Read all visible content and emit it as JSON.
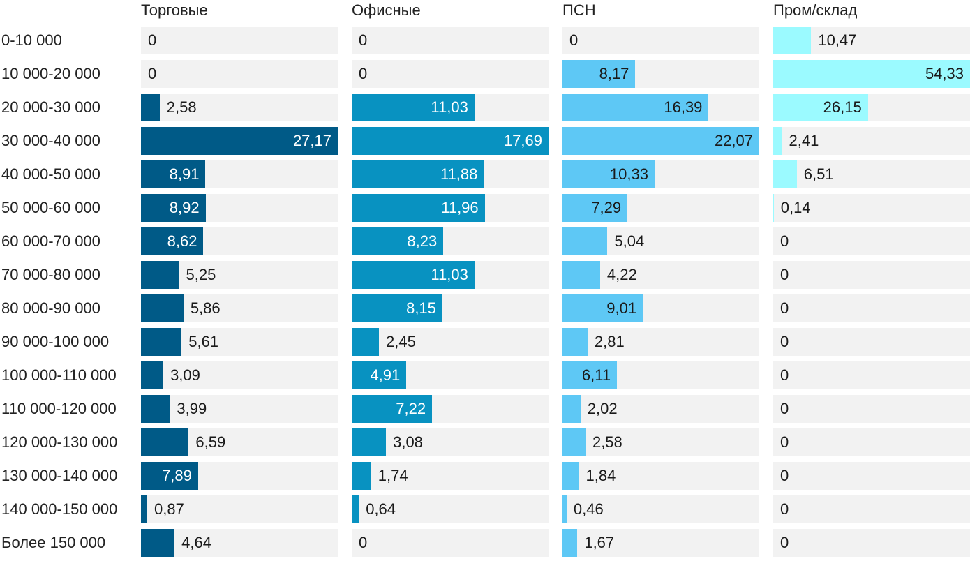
{
  "chart_data": {
    "type": "bar",
    "orientation": "horizontal",
    "layout": "small-multiples",
    "categories": [
      "0-10 000",
      "10 000-20 000",
      "20 000-30 000",
      "30 000-40 000",
      "40 000-50 000",
      "50 000-60 000",
      "60 000-70 000",
      "70 000-80 000",
      "80 000-90 000",
      "90 000-100 000",
      "100 000-110 000",
      "110 000-120 000",
      "120 000-130 000",
      "130 000-140 000",
      "140 000-150 000",
      "Более 150 000"
    ],
    "series": [
      {
        "name": "Торговые",
        "color": "#005a87",
        "values": [
          0,
          0,
          2.58,
          27.17,
          8.91,
          8.92,
          8.62,
          5.25,
          5.86,
          5.61,
          3.09,
          3.99,
          6.59,
          7.89,
          0.87,
          4.64
        ],
        "labels": [
          "0",
          "0",
          "2,58",
          "27,17",
          "8,91",
          "8,92",
          "8,62",
          "5,25",
          "5,86",
          "5,61",
          "3,09",
          "3,99",
          "6,59",
          "7,89",
          "0,87",
          "4,64"
        ]
      },
      {
        "name": "Офисные",
        "color": "#0892c1",
        "values": [
          0,
          0,
          11.03,
          17.69,
          11.88,
          11.96,
          8.23,
          11.03,
          8.15,
          2.45,
          4.91,
          7.22,
          3.08,
          1.74,
          0.64,
          0
        ],
        "labels": [
          "0",
          "0",
          "11,03",
          "17,69",
          "11,88",
          "11,96",
          "8,23",
          "11,03",
          "8,15",
          "2,45",
          "4,91",
          "7,22",
          "3,08",
          "1,74",
          "0,64",
          "0"
        ]
      },
      {
        "name": "ПСН",
        "color": "#5ec8f5",
        "values": [
          0,
          8.17,
          16.39,
          22.07,
          10.33,
          7.29,
          5.04,
          4.22,
          9.01,
          2.81,
          6.11,
          2.02,
          2.58,
          1.84,
          0.46,
          1.67
        ],
        "labels": [
          "0",
          "8,17",
          "16,39",
          "22,07",
          "10,33",
          "7,29",
          "5,04",
          "4,22",
          "9,01",
          "2,81",
          "6,11",
          "2,02",
          "2,58",
          "1,84",
          "0,46",
          "1,67"
        ]
      },
      {
        "name": "Пром/склад",
        "color": "#9bfaff",
        "values": [
          10.47,
          54.33,
          26.15,
          2.41,
          6.51,
          0.14,
          0,
          0,
          0,
          0,
          0,
          0,
          0,
          0,
          0,
          0
        ],
        "labels": [
          "10,47",
          "54,33",
          "26,15",
          "2,41",
          "6,51",
          "0,14",
          "0",
          "0",
          "0",
          "0",
          "0",
          "0",
          "0",
          "0",
          "0",
          "0"
        ]
      }
    ],
    "title": "",
    "xlabel": "",
    "ylabel": ""
  }
}
